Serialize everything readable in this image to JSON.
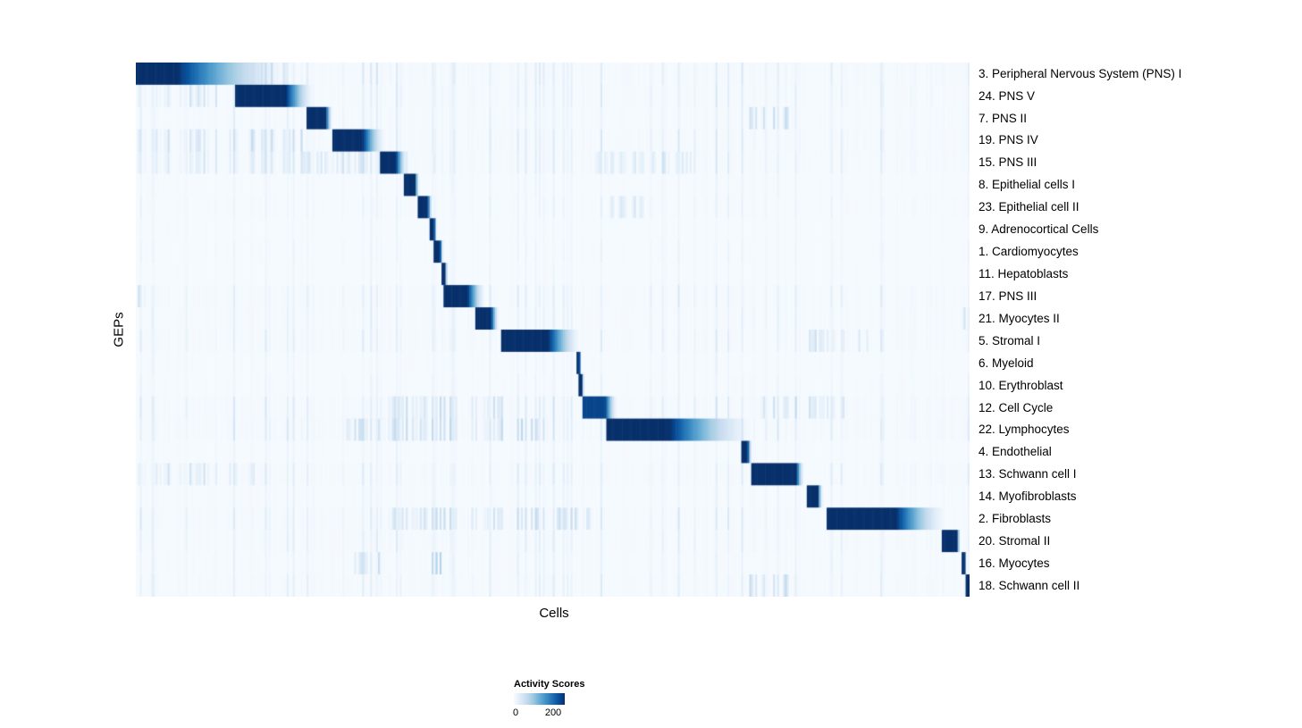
{
  "chart_data": {
    "type": "heatmap",
    "title": "",
    "xlabel": "Cells",
    "ylabel": "GEPs",
    "colormap": "Blues",
    "value_range": [
      0,
      250
    ],
    "legend": {
      "title": "Activity Scores",
      "ticks": [
        "0",
        "200"
      ]
    },
    "n_rows": 24,
    "colors": {
      "background": "#ffffff",
      "heatmap_low": "#f7fbff",
      "heatmap_high": "#08306b"
    },
    "rows": [
      {
        "label": "3. Peripheral Nervous System (PNS) I",
        "block_start": 0.0,
        "block_dark_end": 0.05,
        "block_fade_end": 0.19,
        "peak": 250,
        "noise": 0.55,
        "noise_regions": [
          [
            0.12,
            0.18,
            0.55
          ]
        ]
      },
      {
        "label": "24. PNS V",
        "block_start": 0.118,
        "block_dark_end": 0.18,
        "block_fade_end": 0.215,
        "peak": 250,
        "noise": 0.45,
        "noise_regions": [
          [
            0.0,
            0.1,
            0.4
          ]
        ]
      },
      {
        "label": "7. PNS II",
        "block_start": 0.205,
        "block_dark_end": 0.228,
        "block_fade_end": 0.236,
        "peak": 250,
        "noise": 0.35,
        "noise_regions": [
          [
            0.73,
            0.79,
            0.55
          ]
        ]
      },
      {
        "label": "19. PNS IV",
        "block_start": 0.236,
        "block_dark_end": 0.272,
        "block_fade_end": 0.3,
        "peak": 250,
        "noise": 0.5,
        "noise_regions": [
          [
            0.0,
            0.2,
            0.45
          ]
        ]
      },
      {
        "label": "15. PNS III",
        "block_start": 0.292,
        "block_dark_end": 0.312,
        "block_fade_end": 0.326,
        "peak": 250,
        "noise": 0.45,
        "noise_regions": [
          [
            0.0,
            0.33,
            0.3
          ],
          [
            0.55,
            0.68,
            0.3
          ]
        ]
      },
      {
        "label": "8. Epithelial cells I",
        "block_start": 0.322,
        "block_dark_end": 0.335,
        "block_fade_end": 0.34,
        "peak": 250,
        "noise": 0.2,
        "noise_regions": []
      },
      {
        "label": "23. Epithelial cell II",
        "block_start": 0.337,
        "block_dark_end": 0.35,
        "block_fade_end": 0.356,
        "peak": 250,
        "noise": 0.25,
        "noise_regions": [
          [
            0.57,
            0.62,
            0.3
          ]
        ]
      },
      {
        "label": "9. Adrenocortical Cells",
        "block_start": 0.352,
        "block_dark_end": 0.358,
        "block_fade_end": 0.361,
        "peak": 250,
        "noise": 0.15,
        "noise_regions": []
      },
      {
        "label": "1. Cardiomyocytes",
        "block_start": 0.356,
        "block_dark_end": 0.365,
        "block_fade_end": 0.369,
        "peak": 250,
        "noise": 0.2,
        "noise_regions": []
      },
      {
        "label": "11. Hepatoblasts",
        "block_start": 0.366,
        "block_dark_end": 0.371,
        "block_fade_end": 0.374,
        "peak": 250,
        "noise": 0.15,
        "noise_regions": []
      },
      {
        "label": "17. PNS III",
        "block_start": 0.368,
        "block_dark_end": 0.398,
        "block_fade_end": 0.42,
        "peak": 250,
        "noise": 0.45,
        "noise_regions": [
          [
            0.0,
            0.015,
            0.9
          ]
        ]
      },
      {
        "label": "21. Myocytes II",
        "block_start": 0.408,
        "block_dark_end": 0.426,
        "block_fade_end": 0.436,
        "peak": 250,
        "noise": 0.35,
        "noise_regions": [
          [
            0.99,
            1.0,
            0.6
          ]
        ]
      },
      {
        "label": "5. Stromal I",
        "block_start": 0.437,
        "block_dark_end": 0.495,
        "block_fade_end": 0.535,
        "peak": 250,
        "noise": 0.45,
        "noise_regions": [
          [
            0.8,
            0.88,
            0.35
          ]
        ]
      },
      {
        "label": "6. Myeloid",
        "block_start": 0.528,
        "block_dark_end": 0.532,
        "block_fade_end": 0.534,
        "peak": 250,
        "noise": 0.2,
        "noise_regions": []
      },
      {
        "label": "10. Erythroblast",
        "block_start": 0.531,
        "block_dark_end": 0.535,
        "block_fade_end": 0.538,
        "peak": 250,
        "noise": 0.22,
        "noise_regions": []
      },
      {
        "label": "12. Cell Cycle",
        "block_start": 0.535,
        "block_dark_end": 0.563,
        "block_fade_end": 0.578,
        "peak": 230,
        "noise": 0.55,
        "noise_regions": [
          [
            0.3,
            0.45,
            0.4
          ],
          [
            0.75,
            0.85,
            0.35
          ]
        ]
      },
      {
        "label": "22. Lymphocytes",
        "block_start": 0.565,
        "block_dark_end": 0.64,
        "block_fade_end": 0.745,
        "peak": 250,
        "noise": 0.6,
        "noise_regions": [
          [
            0.25,
            0.5,
            0.45
          ]
        ]
      },
      {
        "label": "4. Endothelial",
        "block_start": 0.727,
        "block_dark_end": 0.734,
        "block_fade_end": 0.739,
        "peak": 250,
        "noise": 0.2,
        "noise_regions": []
      },
      {
        "label": "13. Schwann cell I",
        "block_start": 0.737,
        "block_dark_end": 0.792,
        "block_fade_end": 0.802,
        "peak": 250,
        "noise": 0.5,
        "noise_regions": [
          [
            0.0,
            0.15,
            0.35
          ]
        ]
      },
      {
        "label": "14. Myofibroblasts",
        "block_start": 0.805,
        "block_dark_end": 0.818,
        "block_fade_end": 0.824,
        "peak": 250,
        "noise": 0.25,
        "noise_regions": []
      },
      {
        "label": "2. Fibroblasts",
        "block_start": 0.828,
        "block_dark_end": 0.912,
        "block_fade_end": 0.975,
        "peak": 250,
        "noise": 0.5,
        "noise_regions": [
          [
            0.3,
            0.55,
            0.4
          ]
        ]
      },
      {
        "label": "20. Stromal II",
        "block_start": 0.966,
        "block_dark_end": 0.985,
        "block_fade_end": 0.989,
        "peak": 250,
        "noise": 0.4,
        "noise_regions": []
      },
      {
        "label": "16. Myocytes",
        "block_start": 0.99,
        "block_dark_end": 0.994,
        "block_fade_end": 0.996,
        "peak": 250,
        "noise": 0.3,
        "noise_regions": [
          [
            0.26,
            0.3,
            0.4
          ],
          [
            0.355,
            0.37,
            0.5
          ]
        ]
      },
      {
        "label": "18. Schwann cell II",
        "block_start": 0.995,
        "block_dark_end": 1.0,
        "block_fade_end": 1.0,
        "peak": 250,
        "noise": 0.4,
        "noise_regions": [
          [
            0.73,
            0.79,
            0.5
          ]
        ]
      }
    ]
  }
}
